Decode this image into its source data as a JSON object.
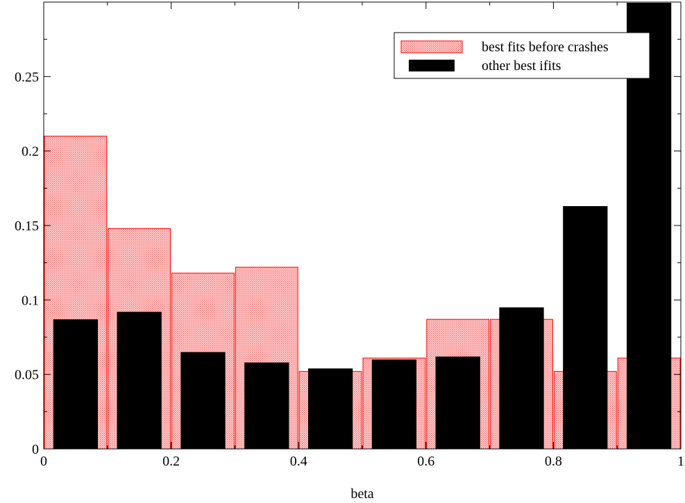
{
  "chart_data": {
    "type": "bar",
    "xlabel": "beta",
    "ylabel": "",
    "title": "",
    "xlim": [
      0,
      1
    ],
    "ylim": [
      0,
      0.3
    ],
    "x_ticks": [
      {
        "value": 0,
        "label": "0"
      },
      {
        "value": 0.2,
        "label": "0.2"
      },
      {
        "value": 0.4,
        "label": "0.4"
      },
      {
        "value": 0.6,
        "label": "0.6"
      },
      {
        "value": 0.8,
        "label": "0.8"
      },
      {
        "value": 1,
        "label": "1"
      }
    ],
    "y_ticks": [
      {
        "value": 0,
        "label": "0"
      },
      {
        "value": 0.05,
        "label": "0.05"
      },
      {
        "value": 0.1,
        "label": "0.1"
      },
      {
        "value": 0.15,
        "label": "0.15"
      },
      {
        "value": 0.2,
        "label": "0.2"
      },
      {
        "value": 0.25,
        "label": "0.25"
      }
    ],
    "grid": false,
    "legend_position": "top-right",
    "categories": [
      "0-0.1",
      "0.1-0.2",
      "0.2-0.3",
      "0.3-0.4",
      "0.4-0.5",
      "0.5-0.6",
      "0.6-0.7",
      "0.7-0.8",
      "0.8-0.9",
      "0.9-1"
    ],
    "series": [
      {
        "name": "best fits before crashes",
        "style": "hatched-red",
        "color": "#ff0000",
        "bins": [
          {
            "from": 0.0,
            "to": 0.1,
            "value": 0.21
          },
          {
            "from": 0.1,
            "to": 0.2,
            "value": 0.148
          },
          {
            "from": 0.2,
            "to": 0.3,
            "value": 0.118
          },
          {
            "from": 0.3,
            "to": 0.4,
            "value": 0.122
          },
          {
            "from": 0.4,
            "to": 0.5,
            "value": 0.052
          },
          {
            "from": 0.5,
            "to": 0.6,
            "value": 0.061
          },
          {
            "from": 0.6,
            "to": 0.7,
            "value": 0.087
          },
          {
            "from": 0.7,
            "to": 0.8,
            "value": 0.087
          },
          {
            "from": 0.8,
            "to": 0.9,
            "value": 0.052
          },
          {
            "from": 0.9,
            "to": 1.0,
            "value": 0.061
          }
        ]
      },
      {
        "name": "other best ifits",
        "style": "solid-black",
        "color": "#000000",
        "bins": [
          {
            "from": 0.015,
            "to": 0.085,
            "value": 0.087
          },
          {
            "from": 0.115,
            "to": 0.185,
            "value": 0.092
          },
          {
            "from": 0.215,
            "to": 0.285,
            "value": 0.065
          },
          {
            "from": 0.315,
            "to": 0.385,
            "value": 0.058
          },
          {
            "from": 0.415,
            "to": 0.485,
            "value": 0.054
          },
          {
            "from": 0.515,
            "to": 0.585,
            "value": 0.06
          },
          {
            "from": 0.615,
            "to": 0.685,
            "value": 0.062
          },
          {
            "from": 0.715,
            "to": 0.785,
            "value": 0.095
          },
          {
            "from": 0.815,
            "to": 0.885,
            "value": 0.163
          },
          {
            "from": 0.915,
            "to": 0.985,
            "value": 0.3
          }
        ]
      }
    ]
  }
}
